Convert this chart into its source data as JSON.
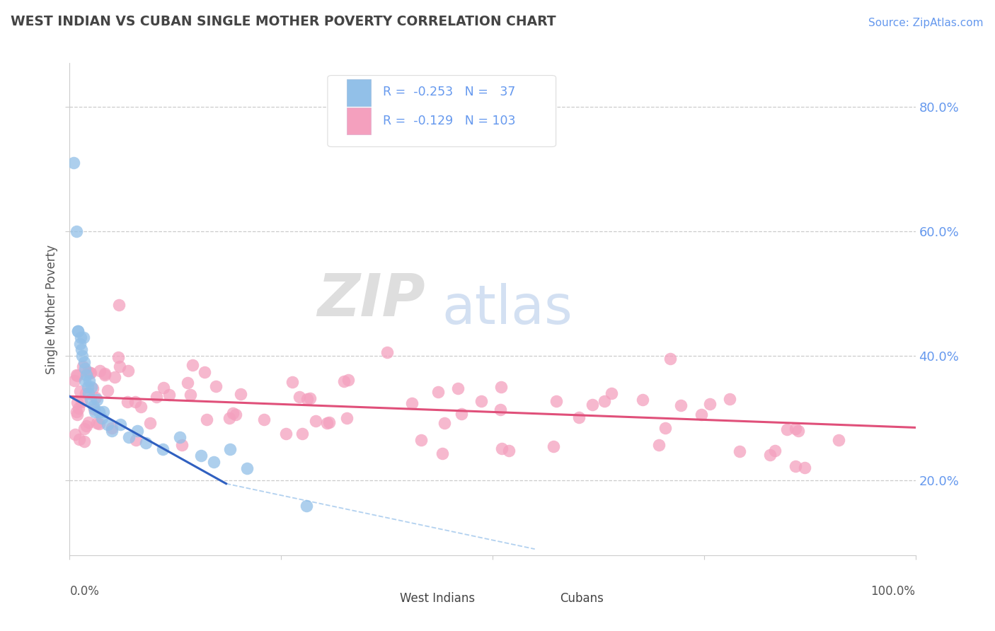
{
  "title": "WEST INDIAN VS CUBAN SINGLE MOTHER POVERTY CORRELATION CHART",
  "source": "Source: ZipAtlas.com",
  "ylabel": "Single Mother Poverty",
  "yticks": [
    0.2,
    0.4,
    0.6,
    0.8
  ],
  "ytick_labels": [
    "20.0%",
    "40.0%",
    "60.0%",
    "80.0%"
  ],
  "west_indian_color": "#92C0E8",
  "cuban_color": "#F4A0BE",
  "west_indian_R": -0.253,
  "west_indian_N": 37,
  "cuban_R": -0.129,
  "cuban_N": 103,
  "west_indian_line_color": "#3060C0",
  "cuban_line_color": "#E0507A",
  "diag_line_color": "#AACCEE",
  "watermark_zip": "ZIP",
  "watermark_atlas": "atlas",
  "background": "#FFFFFF",
  "title_color": "#444444",
  "source_color": "#6699EE",
  "tick_label_color": "#6699EE",
  "legend_text_color": "#6699EE",
  "bottom_label_color": "#444444",
  "grid_color": "#CCCCCC",
  "xmin": 0.0,
  "xmax": 1.0,
  "ymin": 0.08,
  "ymax": 0.87
}
